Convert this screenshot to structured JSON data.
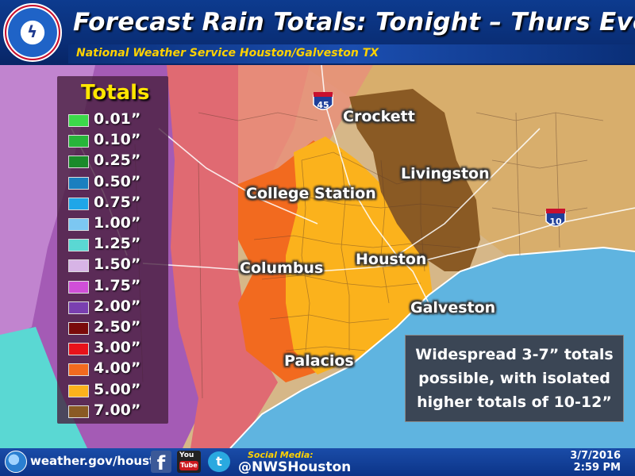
{
  "header": {
    "title": "Forecast Rain Totals: Tonight – Thurs Eve",
    "subtitle": "National Weather Service Houston/Galveston  TX"
  },
  "legend": {
    "title": "Totals",
    "items": [
      {
        "label": "0.01”",
        "color": "#3cd94a"
      },
      {
        "label": "0.10”",
        "color": "#27b53a"
      },
      {
        "label": "0.25”",
        "color": "#1a8a2a"
      },
      {
        "label": "0.50”",
        "color": "#1a7fbf"
      },
      {
        "label": "0.75”",
        "color": "#1fa6e8"
      },
      {
        "label": "1.00”",
        "color": "#7cc7f2"
      },
      {
        "label": "1.25”",
        "color": "#5ad8d3"
      },
      {
        "label": "1.50”",
        "color": "#d7b4e6"
      },
      {
        "label": "1.75”",
        "color": "#d04fd8"
      },
      {
        "label": "2.00”",
        "color": "#7a3fb0"
      },
      {
        "label": "2.50”",
        "color": "#7a0a0a"
      },
      {
        "label": "3.00”",
        "color": "#e8121a"
      },
      {
        "label": "4.00”",
        "color": "#f26a1f"
      },
      {
        "label": "5.00”",
        "color": "#fbb21c"
      },
      {
        "label": "7.00”",
        "color": "#8a5a24"
      }
    ]
  },
  "cities": {
    "crockett": "Crockett",
    "livingston": "Livingston",
    "college_station": "College Station",
    "houston": "Houston",
    "columbus": "Columbus",
    "galveston": "Galveston",
    "palacios": "Palacios"
  },
  "highways": {
    "i45": "45",
    "i10": "10"
  },
  "callout": {
    "line1": "Widespread 3-7” totals",
    "line2": "possible, with isolated",
    "line3": "higher totals of 10-12”"
  },
  "footer": {
    "url": "weather.gov/houston",
    "social_label": "Social Media:",
    "social_handle": "@NWSHouston",
    "date": "3/7/2016",
    "time": "2:59 PM",
    "facebook_letter": "f",
    "youtube_top": "You",
    "youtube_bottom": "Tube",
    "twitter_letter": "t"
  },
  "colors": {
    "gulf": "#5fb4e0",
    "band_7in": "#8a5a24",
    "band_5in": "#fbb21c",
    "band_4in": "#f26a1f",
    "band_3in": "#e06a72",
    "band_2in": "#a45bb5",
    "outer_tan": "#d6b788"
  }
}
